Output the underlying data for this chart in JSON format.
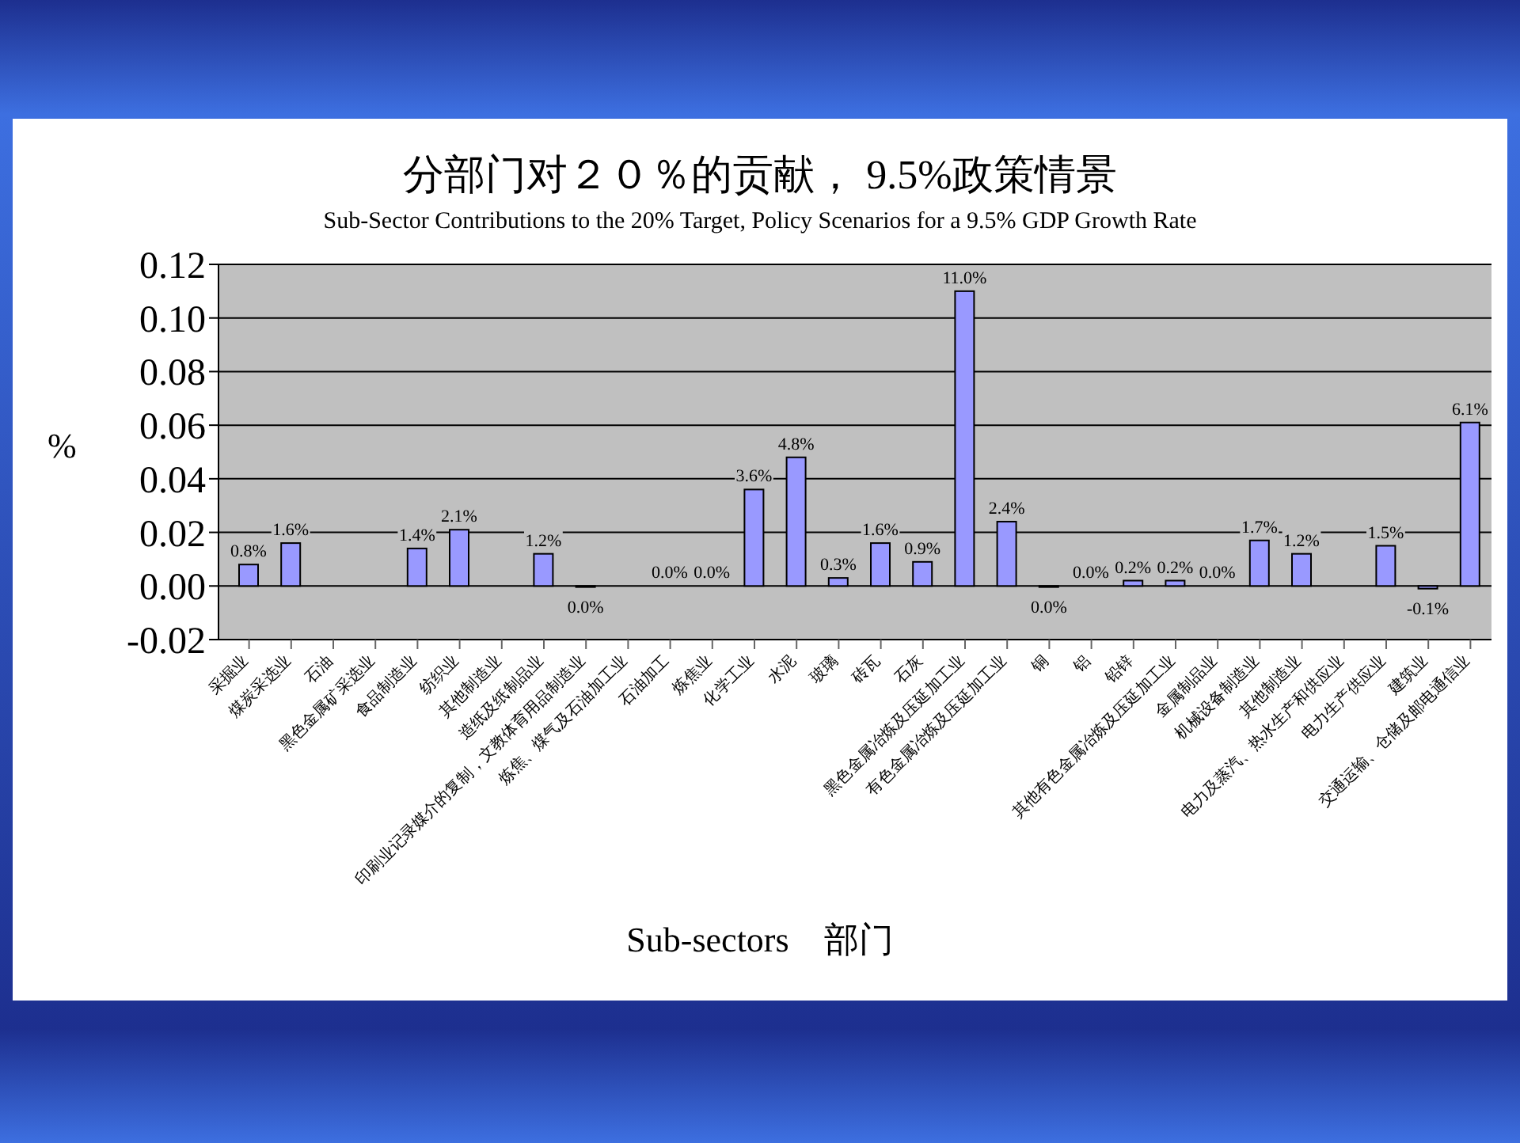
{
  "chart_data": {
    "type": "bar",
    "title": "分部门对２０％的贡献， 9.5%政策情景",
    "subtitle": "Sub-Sector Contributions to the 20% Target, Policy Scenarios for a 9.5% GDP Growth Rate",
    "xlabel": "Sub-sectors　部门",
    "ylabel": "%",
    "categories": [
      "采掘业",
      "煤炭采选业",
      "石油",
      "黑色金属矿采选业",
      "食品制造业",
      "纺织业",
      "其他制造业",
      "造纸及纸制品业",
      "印刷业记录媒介的复制，文教体育用品制造业",
      "炼焦、煤气及石油加工业",
      "石油加工",
      "炼焦业",
      "化学工业",
      "水泥",
      "玻璃",
      "砖瓦",
      "石灰",
      "黑色金属冶炼及压延加工业",
      "有色金属冶炼及压延加工业",
      "铜",
      "铝",
      "铅锌",
      "其他有色金属冶炼及压延加工业",
      "金属制品业",
      "机械设备制造业",
      "其他制造业",
      "电力及蒸汽、热水生产和供应业",
      "电力生产供应业",
      "建筑业",
      "交通运输、仓储及邮电通信业"
    ],
    "values": [
      0.008,
      0.016,
      null,
      null,
      0.014,
      0.021,
      null,
      0.012,
      -0.0004,
      null,
      0,
      0,
      0.036,
      0.048,
      0.003,
      0.016,
      0.009,
      0.11,
      0.024,
      -0.0004,
      0,
      0.002,
      0.002,
      0,
      0.017,
      0.012,
      null,
      0.015,
      -0.001,
      0.061
    ],
    "value_labels": [
      "0.8%",
      "1.6%",
      null,
      null,
      "1.4%",
      "2.1%",
      null,
      "1.2%",
      "0.0%",
      null,
      "0.0%",
      "0.0%",
      "3.6%",
      "4.8%",
      "0.3%",
      "1.6%",
      "0.9%",
      "11.0%",
      "2.4%",
      "0.0%",
      "0.0%",
      "0.2%",
      "0.2%",
      "0.0%",
      "1.7%",
      "1.2%",
      null,
      "1.5%",
      "-0.1%",
      "6.1%"
    ],
    "color": "#9999ff",
    "ylim": [
      -0.02,
      0.12
    ],
    "yticks": [
      {
        "value": -0.02,
        "label": "-0.02"
      },
      {
        "value": 0,
        "label": "0.00"
      },
      {
        "value": 0.02,
        "label": "0.02"
      },
      {
        "value": 0.04,
        "label": "0.04"
      },
      {
        "value": 0.06,
        "label": "0.06"
      },
      {
        "value": 0.08,
        "label": "0.08"
      },
      {
        "value": 0.1,
        "label": "0.10"
      },
      {
        "value": 0.12,
        "label": "0.12"
      }
    ],
    "grid": "y",
    "legend": false
  }
}
